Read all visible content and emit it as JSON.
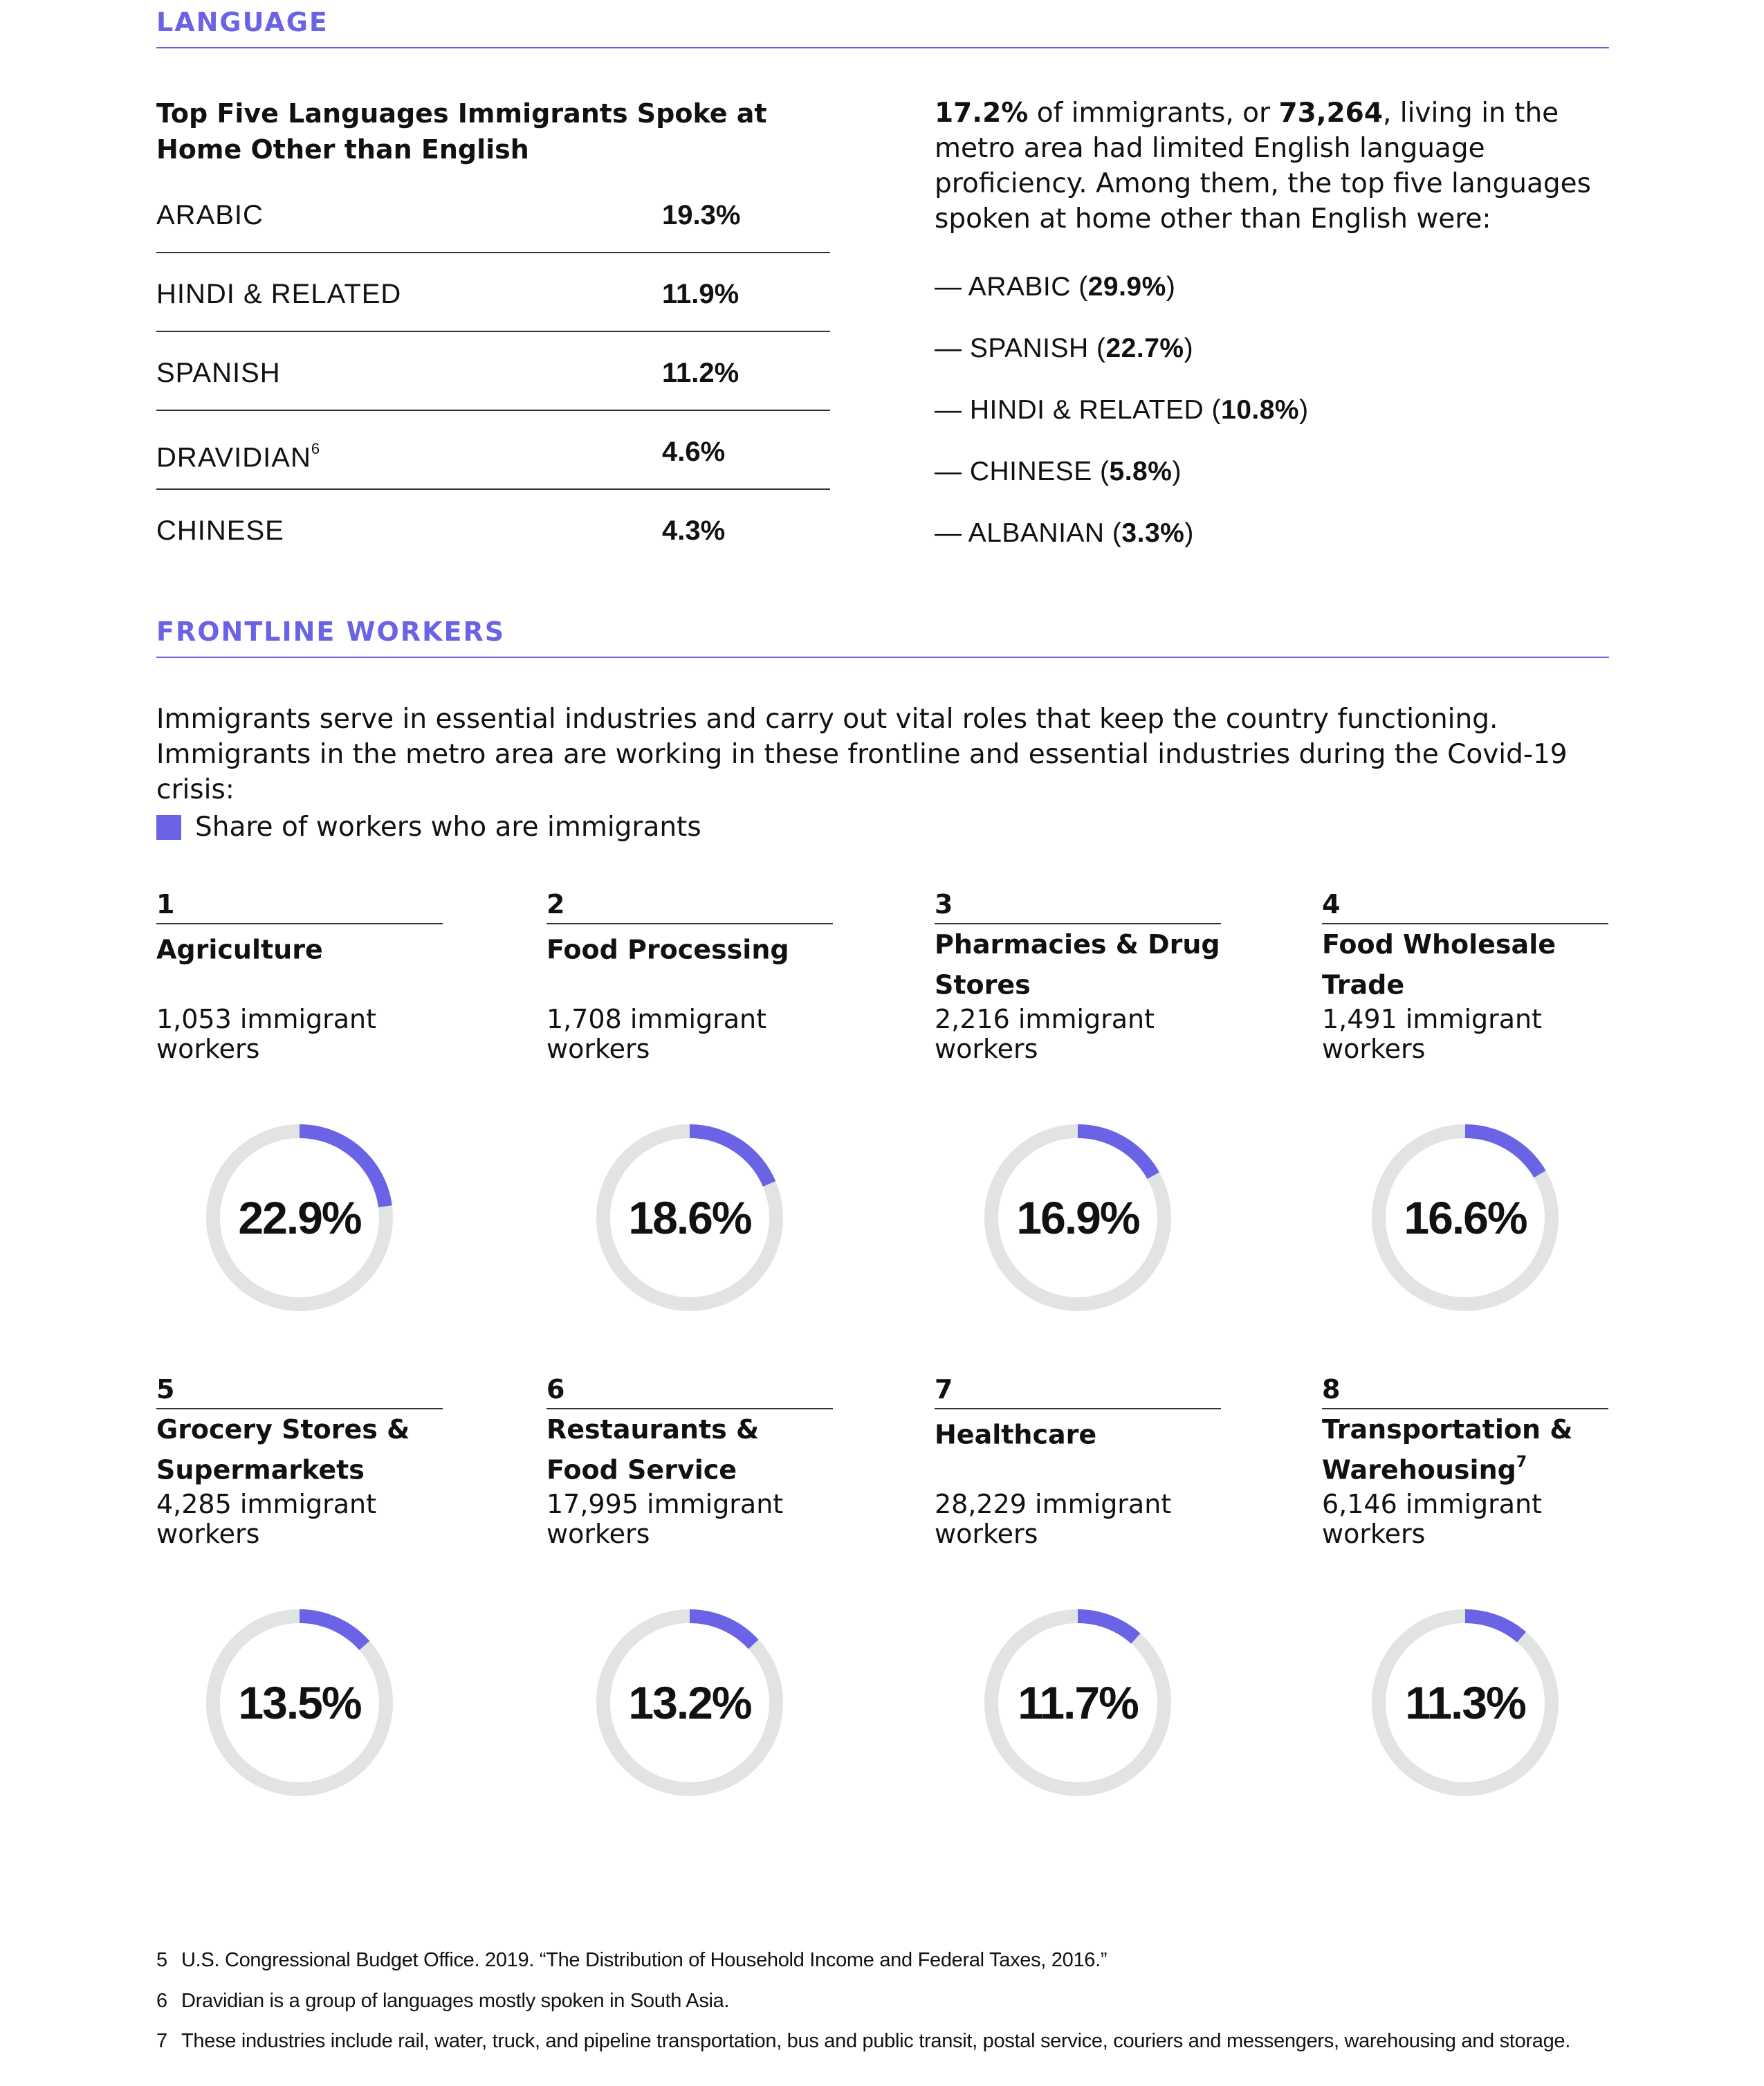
{
  "colors": {
    "accent": "#6a63e6",
    "track": "#e1e4e3",
    "text": "#111111",
    "rule": "#333333"
  },
  "language": {
    "section_title": "LANGUAGE",
    "heading": "Top Five Languages Immigrants Spoke at Home Other than English",
    "rows": [
      {
        "name": "ARABIC",
        "value": "19.3%"
      },
      {
        "name": "HINDI & RELATED",
        "value": "11.9%"
      },
      {
        "name": "SPANISH",
        "value": "11.2%"
      },
      {
        "name": "DRAVIDIAN",
        "note": "6",
        "value": "4.6%"
      },
      {
        "name": "CHINESE",
        "value": "4.3%"
      }
    ],
    "lep": {
      "share": "17.2%",
      "text_a": " of immigrants, or ",
      "count": "73,264",
      "text_b": ", living in the metro area had limited English language proficiency. Among them, the top five languages spoken at home other than English were:",
      "items": [
        {
          "name": "— ARABIC (",
          "value": "29.9%",
          "close": ")"
        },
        {
          "name": "— SPANISH (",
          "value": "22.7%",
          "close": ")"
        },
        {
          "name": "— HINDI & RELATED (",
          "value": "10.8%",
          "close": ")"
        },
        {
          "name": "— CHINESE (",
          "value": "5.8%",
          "close": ")"
        },
        {
          "name": "— ALBANIAN (",
          "value": "3.3%",
          "close": ")"
        }
      ]
    }
  },
  "frontline": {
    "section_title": "FRONTLINE WORKERS",
    "intro": "Immigrants serve in essential industries and carry out vital roles that keep the country functioning. Immigrants in the metro area are working in these frontline and essential industries during the Covid-19 crisis:",
    "legend_label": "Share of workers who are immigrants"
  },
  "chart_data": {
    "type": "donut",
    "series_name": "Share of workers who are immigrants",
    "categories": [
      "Agriculture",
      "Food Processing",
      "Pharmacies & Drug Stores",
      "Food Wholesale Trade",
      "Grocery Stores & Supermarkets",
      "Restaurants & Food Service",
      "Healthcare",
      "Transportation & Warehousing"
    ],
    "values": [
      22.9,
      18.6,
      16.9,
      16.6,
      13.5,
      13.2,
      11.7,
      11.3
    ],
    "items": [
      {
        "rank": "1",
        "title": "Agriculture",
        "note": "",
        "count_text": "1,053 immigrant workers",
        "percent_label": "22.9%",
        "percent": 22.9
      },
      {
        "rank": "2",
        "title": "Food Processing",
        "note": "",
        "count_text": "1,708 immigrant workers",
        "percent_label": "18.6%",
        "percent": 18.6
      },
      {
        "rank": "3",
        "title": "Pharmacies & Drug Stores",
        "note": "",
        "count_text": "2,216 immigrant workers",
        "percent_label": "16.9%",
        "percent": 16.9
      },
      {
        "rank": "4",
        "title": "Food Wholesale Trade",
        "note": "",
        "count_text": "1,491 immigrant workers",
        "percent_label": "16.6%",
        "percent": 16.6
      },
      {
        "rank": "5",
        "title": "Grocery Stores & Supermarkets",
        "note": "",
        "count_text": "4,285 immigrant workers",
        "percent_label": "13.5%",
        "percent": 13.5
      },
      {
        "rank": "6",
        "title": "Restaurants & Food Service",
        "note": "",
        "count_text": "17,995 immigrant workers",
        "percent_label": "13.2%",
        "percent": 13.2
      },
      {
        "rank": "7",
        "title": "Healthcare",
        "note": "",
        "count_text": "28,229 immigrant workers",
        "percent_label": "11.7%",
        "percent": 11.7
      },
      {
        "rank": "8",
        "title": "Transportation & Warehousing",
        "note": "7",
        "count_text": "6,146  immigrant workers",
        "percent_label": "11.3%",
        "percent": 11.3
      }
    ]
  },
  "footnotes": [
    {
      "num": "5",
      "text": "U.S. Congressional Budget Office. 2019. “The Distribution of Household Income and Federal Taxes, 2016.”"
    },
    {
      "num": "6",
      "text": "Dravidian is a group of languages mostly spoken in South Asia."
    },
    {
      "num": "7",
      "text": "These industries include rail, water, truck, and pipeline transportation, bus and public transit, postal service, couriers and messengers, warehousing and storage."
    }
  ]
}
